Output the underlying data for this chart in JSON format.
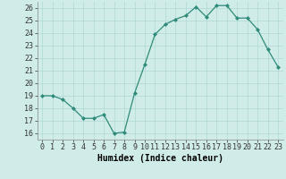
{
  "x": [
    0,
    1,
    2,
    3,
    4,
    5,
    6,
    7,
    8,
    9,
    10,
    11,
    12,
    13,
    14,
    15,
    16,
    17,
    18,
    19,
    20,
    21,
    22,
    23
  ],
  "y": [
    19.0,
    19.0,
    18.7,
    18.0,
    17.2,
    17.2,
    17.5,
    16.0,
    16.1,
    19.2,
    21.5,
    23.9,
    24.7,
    25.1,
    25.4,
    26.1,
    25.3,
    26.2,
    26.2,
    25.2,
    25.2,
    24.3,
    22.7,
    21.3
  ],
  "line_color": "#2e8b7a",
  "marker_color": "#2e8b7a",
  "bg_color": "#d0ece8",
  "grid_color": "#b0d8d3",
  "xlabel": "Humidex (Indice chaleur)",
  "xlim": [
    -0.5,
    23.5
  ],
  "ylim": [
    15.5,
    26.5
  ],
  "yticks": [
    16,
    17,
    18,
    19,
    20,
    21,
    22,
    23,
    24,
    25,
    26
  ],
  "xticks": [
    0,
    1,
    2,
    3,
    4,
    5,
    6,
    7,
    8,
    9,
    10,
    11,
    12,
    13,
    14,
    15,
    16,
    17,
    18,
    19,
    20,
    21,
    22,
    23
  ]
}
